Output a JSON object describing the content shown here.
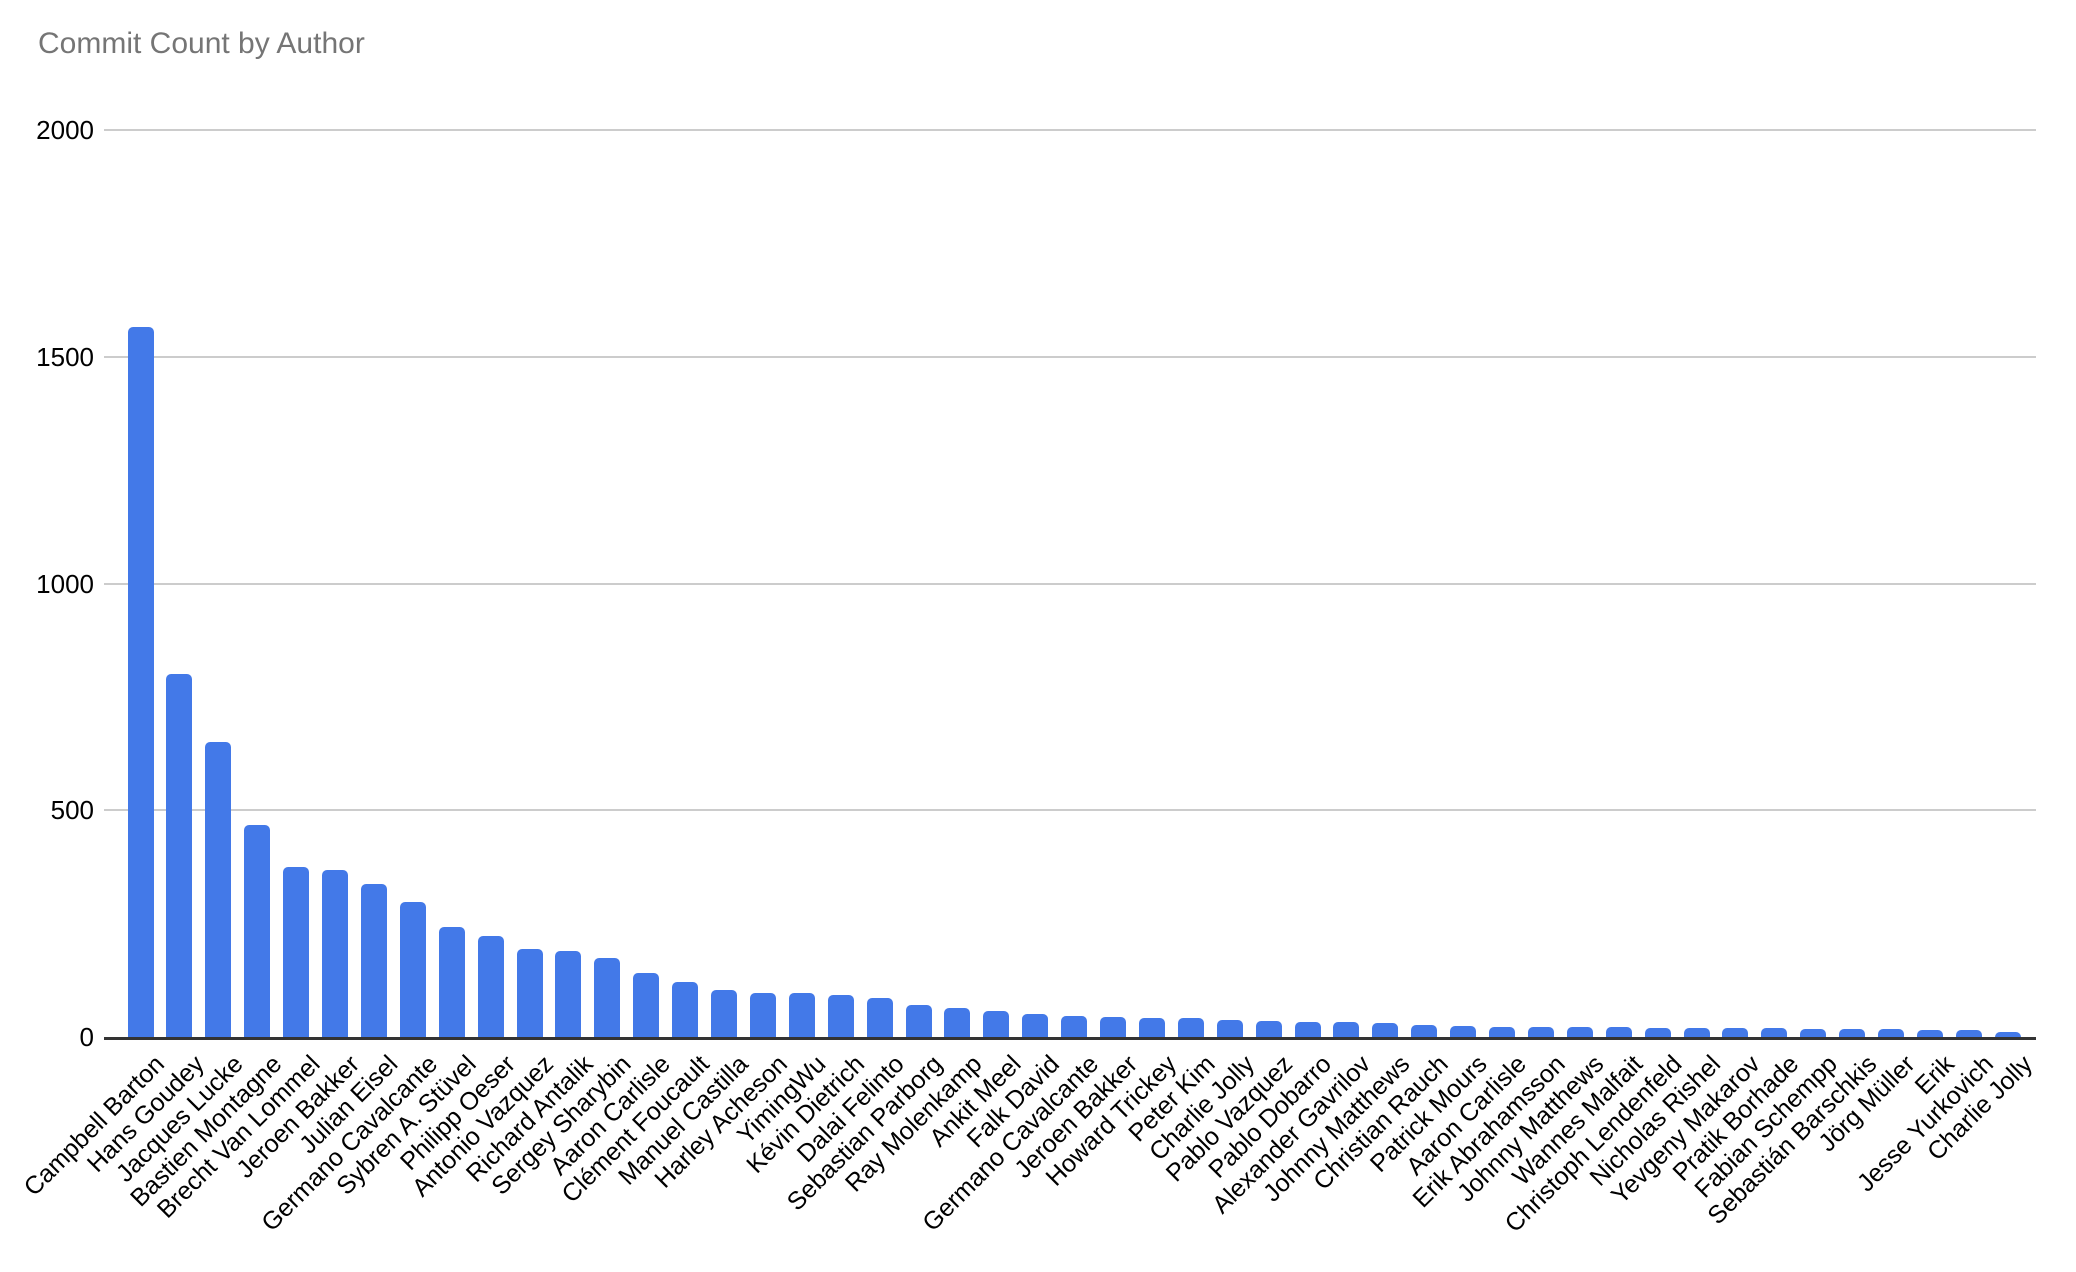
{
  "chart_data": {
    "type": "bar",
    "title": "Commit Count by Author",
    "xlabel": "",
    "ylabel": "",
    "ylim": [
      0,
      2000
    ],
    "yticks": [
      0,
      500,
      1000,
      1500,
      2000
    ],
    "grid": true,
    "legend": "none",
    "x_label_rotation_deg": -45,
    "categories": [
      "Campbell Barton",
      "Hans Goudey",
      "Jacques Lucke",
      "Bastien Montagne",
      "Brecht Van Lommel",
      "Jeroen Bakker",
      "Julian Eisel",
      "Germano Cavalcante",
      "Sybren A. Stüvel",
      "Philipp Oeser",
      "Antonio Vazquez",
      "Richard Antalik",
      "Sergey Sharybin",
      "Aaron Carlisle",
      "Clément Foucault",
      "Manuel Castilla",
      "Harley Acheson",
      "YimingWu",
      "Kévin Dietrich",
      "Dalai Felinto",
      "Sebastian Parborg",
      "Ray Molenkamp",
      "Ankit Meel",
      "Falk David",
      "Germano Cavalcante",
      "Jeroen Bakker",
      "Howard Trickey",
      "Peter Kim",
      "Charlie Jolly",
      "Pablo Vazquez",
      "Pablo Dobarro",
      "Alexander Gavrilov",
      "Johnny Matthews",
      "Christian Rauch",
      "Patrick Mours",
      "Aaron Carlisle",
      "Erik Abrahamsson",
      "Johnny Matthews",
      "Wannes Malfait",
      "Christoph Lendenfeld",
      "Nicholas Rishel",
      "Yevgeny Makarov",
      "Pratik Borhade",
      "Fabian Schempp",
      "Sebastián Barschkis",
      "Jörg Müller",
      "Erik",
      "Jesse Yurkovich",
      "Charlie Jolly"
    ],
    "values": [
      1565,
      800,
      650,
      468,
      375,
      368,
      337,
      298,
      243,
      223,
      194,
      190,
      174,
      141,
      121,
      104,
      98,
      96,
      92,
      87,
      70,
      64,
      58,
      51,
      47,
      44,
      42,
      41,
      38,
      36,
      33,
      32,
      31,
      27,
      24,
      23,
      22,
      21,
      21,
      20,
      20,
      19,
      19,
      18,
      17,
      17,
      16,
      15,
      11
    ],
    "colors": {
      "bar": "#4379e8",
      "title": "#757575",
      "gridline": "#cccccc",
      "axis_line": "#333333",
      "tick_label": "#000000",
      "background": "#ffffff"
    }
  }
}
